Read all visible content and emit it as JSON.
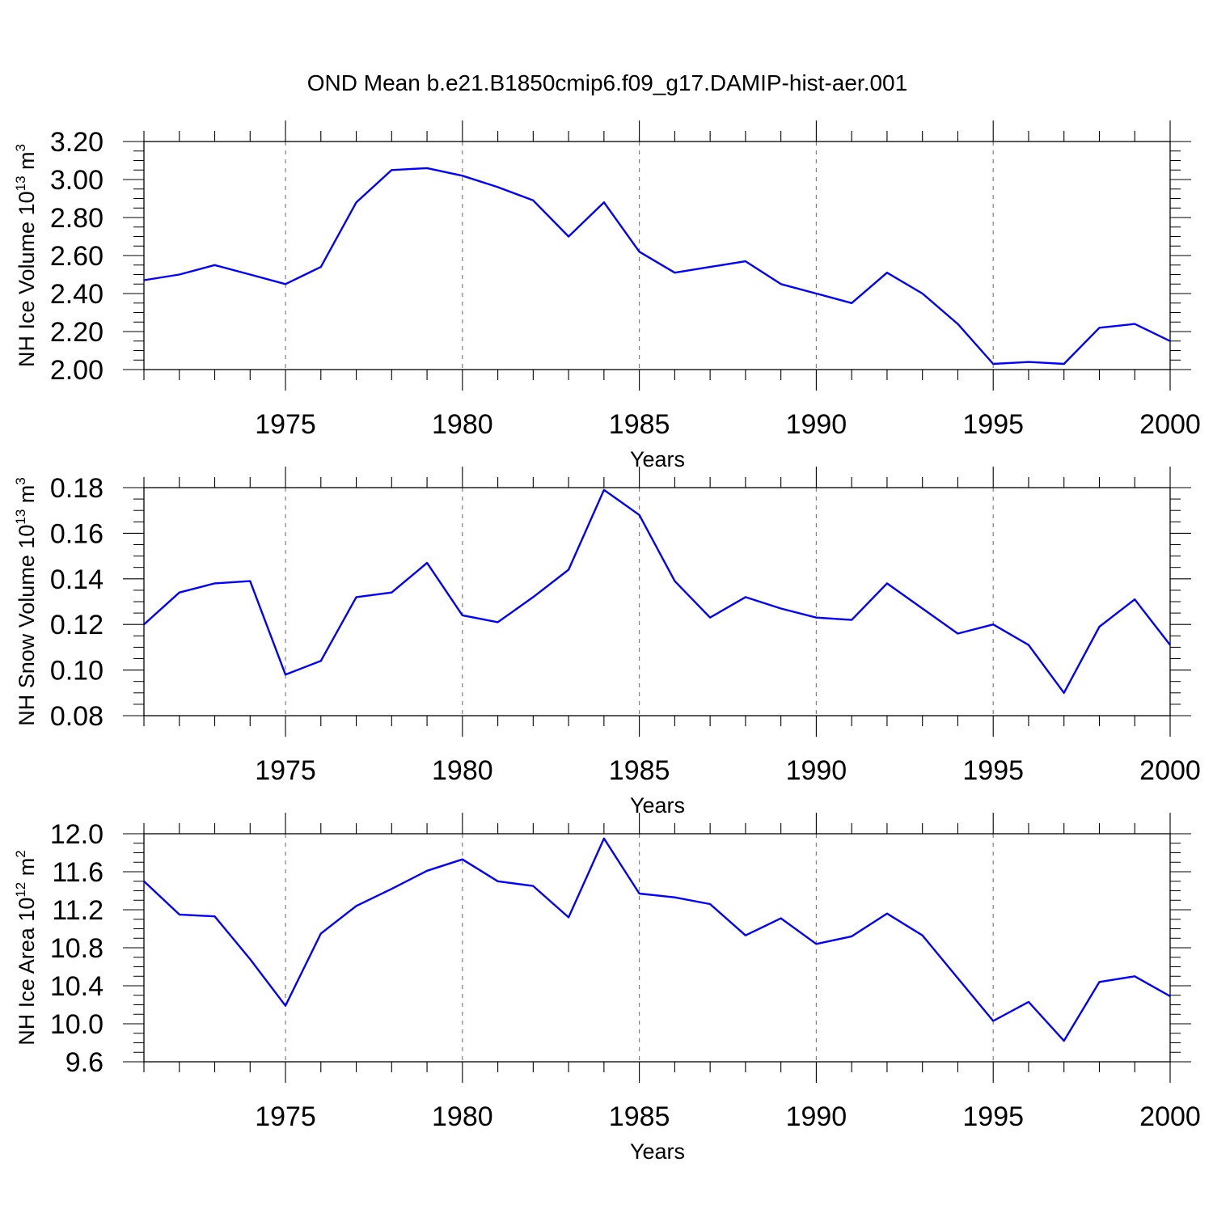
{
  "title": "OND Mean b.e21.B1850cmip6.f09_g17.DAMIP-hist-aer.001",
  "colors": {
    "line": "#0000ff",
    "axis": "#000000",
    "grid": "#808080"
  },
  "chart_data": [
    {
      "type": "line",
      "ylabel": {
        "main": "NH Ice Volume 10",
        "exp": "13",
        "unit": " m",
        "unit_exp": "3"
      },
      "xlabel": "Years",
      "xlim": [
        1971,
        2000
      ],
      "ylim": [
        2.0,
        3.2
      ],
      "xticks": [
        1975,
        1980,
        1985,
        1990,
        1995,
        2000
      ],
      "xtick_labels": [
        "1975",
        "1980",
        "1985",
        "1990",
        "1995",
        "2000"
      ],
      "yticks": [
        2.0,
        2.2,
        2.4,
        2.6,
        2.8,
        3.0,
        3.2
      ],
      "ytick_labels": [
        "2.00",
        "2.20",
        "2.40",
        "2.60",
        "2.80",
        "3.00",
        "3.20"
      ],
      "yminor_step": 0.05,
      "grid": "vertical dashed at major x ticks",
      "series": [
        {
          "x": [
            1971,
            1972,
            1973,
            1974,
            1975,
            1976,
            1977,
            1978,
            1979,
            1980,
            1981,
            1982,
            1983,
            1984,
            1985,
            1986,
            1987,
            1988,
            1989,
            1990,
            1991,
            1992,
            1993,
            1994,
            1995,
            1996,
            1997,
            1998,
            1999,
            2000
          ],
          "values": [
            2.47,
            2.5,
            2.55,
            2.5,
            2.45,
            2.54,
            2.88,
            3.05,
            3.06,
            3.02,
            2.96,
            2.89,
            2.7,
            2.88,
            2.62,
            2.51,
            2.54,
            2.57,
            2.45,
            2.4,
            2.35,
            2.51,
            2.4,
            2.24,
            2.03,
            2.04,
            2.03,
            2.22,
            2.24,
            2.15
          ]
        }
      ]
    },
    {
      "type": "line",
      "ylabel": {
        "main": "NH Snow Volume 10",
        "exp": "13",
        "unit": " m",
        "unit_exp": "3"
      },
      "xlabel": "Years",
      "xlim": [
        1971,
        2000
      ],
      "ylim": [
        0.08,
        0.18
      ],
      "xticks": [
        1975,
        1980,
        1985,
        1990,
        1995,
        2000
      ],
      "xtick_labels": [
        "1975",
        "1980",
        "1985",
        "1990",
        "1995",
        "2000"
      ],
      "yticks": [
        0.08,
        0.1,
        0.12,
        0.14,
        0.16,
        0.18
      ],
      "ytick_labels": [
        "0.08",
        "0.10",
        "0.12",
        "0.14",
        "0.16",
        "0.18"
      ],
      "yminor_step": 0.005,
      "grid": "vertical dashed at major x ticks",
      "series": [
        {
          "x": [
            1971,
            1972,
            1973,
            1974,
            1975,
            1976,
            1977,
            1978,
            1979,
            1980,
            1981,
            1982,
            1983,
            1984,
            1985,
            1986,
            1987,
            1988,
            1989,
            1990,
            1991,
            1992,
            1993,
            1994,
            1995,
            1996,
            1997,
            1998,
            1999,
            2000
          ],
          "values": [
            0.12,
            0.134,
            0.138,
            0.139,
            0.098,
            0.104,
            0.132,
            0.134,
            0.147,
            0.124,
            0.121,
            0.132,
            0.144,
            0.179,
            0.168,
            0.139,
            0.123,
            0.132,
            0.127,
            0.123,
            0.122,
            0.138,
            0.127,
            0.116,
            0.12,
            0.111,
            0.09,
            0.119,
            0.131,
            0.111
          ]
        }
      ]
    },
    {
      "type": "line",
      "ylabel": {
        "main": "NH Ice Area 10",
        "exp": "12",
        "unit": " m",
        "unit_exp": "2"
      },
      "xlabel": "Years",
      "xlim": [
        1971,
        2000
      ],
      "ylim": [
        9.6,
        12.0
      ],
      "xticks": [
        1975,
        1980,
        1985,
        1990,
        1995,
        2000
      ],
      "xtick_labels": [
        "1975",
        "1980",
        "1985",
        "1990",
        "1995",
        "2000"
      ],
      "yticks": [
        9.6,
        10.0,
        10.4,
        10.8,
        11.2,
        11.6,
        12.0
      ],
      "ytick_labels": [
        "9.6",
        "10.0",
        "10.4",
        "10.8",
        "11.2",
        "11.6",
        "12.0"
      ],
      "yminor_step": 0.1,
      "grid": "vertical dashed at major x ticks",
      "series": [
        {
          "x": [
            1971,
            1972,
            1973,
            1974,
            1975,
            1976,
            1977,
            1978,
            1979,
            1980,
            1981,
            1982,
            1983,
            1984,
            1985,
            1986,
            1987,
            1988,
            1989,
            1990,
            1991,
            1992,
            1993,
            1994,
            1995,
            1996,
            1997,
            1998,
            1999,
            2000
          ],
          "values": [
            11.5,
            11.15,
            11.13,
            10.68,
            10.19,
            10.95,
            11.24,
            11.42,
            11.61,
            11.73,
            11.5,
            11.45,
            11.12,
            11.95,
            11.37,
            11.33,
            11.26,
            10.93,
            11.11,
            10.84,
            10.92,
            11.16,
            10.93,
            10.48,
            10.03,
            10.23,
            9.82,
            10.44,
            10.5,
            10.29
          ]
        }
      ]
    }
  ]
}
